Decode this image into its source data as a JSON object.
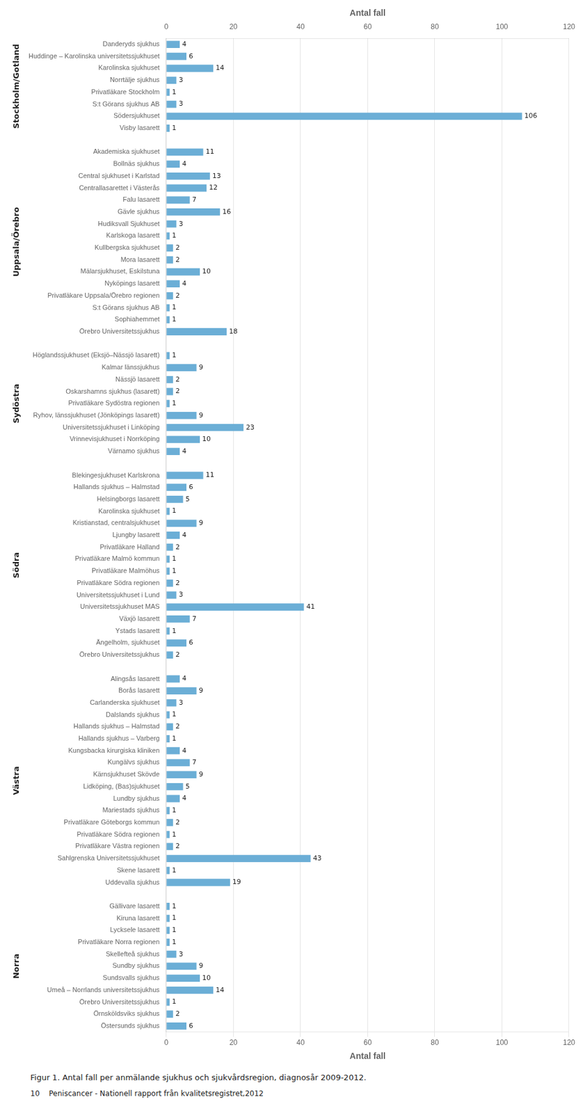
{
  "chart_data": {
    "type": "bar",
    "orientation": "horizontal",
    "title": "Antal fall",
    "xlabel": "Antal fall",
    "color": "#6baed6",
    "xlim": [
      0,
      120
    ],
    "xticks": [
      0,
      20,
      40,
      60,
      80,
      100,
      120
    ],
    "grid": true,
    "data_labels": true,
    "groups": [
      {
        "name": "Stockholm/Gotland",
        "categories": [
          "Danderyds sjukhus",
          "Huddinge – Karolinska universitetssjukhuset",
          "Karolinska sjukhuset",
          "Norrtälje sjukhus",
          "Privatläkare Stockholm",
          "S:t Görans sjukhus AB",
          "Södersjukhuset",
          "Visby lasarett"
        ],
        "values": [
          4,
          6,
          14,
          3,
          1,
          3,
          106,
          1
        ]
      },
      {
        "name": "Uppsala/Örebro",
        "categories": [
          "Akademiska sjukhuset",
          "Bollnäs sjukhus",
          "Central sjukhuset i Karlstad",
          "Centrallasarettet i Västerås",
          "Falu lasarett",
          "Gävle sjukhus",
          "Hudiksvall Sjukhuset",
          "Karlskoga lasarett",
          "Kullbergska sjukhuset",
          "Mora lasarett",
          "Mälarsjukhuset, Eskilstuna",
          "Nyköpings lasarett",
          "Privatläkare Uppsala/Örebro regionen",
          "S:t Görans sjukhus AB",
          "Sophiahemmet",
          "Örebro Universitetssjukhus"
        ],
        "values": [
          11,
          4,
          13,
          12,
          7,
          16,
          3,
          1,
          2,
          2,
          10,
          4,
          2,
          1,
          1,
          18
        ]
      },
      {
        "name": "Sydöstra",
        "categories": [
          "Höglandssjukhuset (Eksjö–Nässjö lasarett)",
          "Kalmar länssjukhus",
          "Nässjö lasarett",
          "Oskarshamns sjukhus (lasarett)",
          "Privatläkare Sydöstra regionen",
          "Ryhov, länssjukhuset (Jönköpings lasarett)",
          "Universitetssjukhuset i Linköping",
          "Vrinnevisjukhuset i Norrköping",
          "Värnamo sjukhus"
        ],
        "values": [
          1,
          9,
          2,
          2,
          1,
          9,
          23,
          10,
          4
        ]
      },
      {
        "name": "Södra",
        "categories": [
          "Blekingesjukhuset Karlskrona",
          "Hallands sjukhus – Halmstad",
          "Helsingborgs lasarett",
          "Karolinska sjukhuset",
          "Kristianstad, centralsjukhuset",
          "Ljungby lasarett",
          "Privatläkare Halland",
          "Privatläkare Malmö kommun",
          "Privatläkare Malmöhus",
          "Privatläkare Södra regionen",
          "Universitetssjukhuset i Lund",
          "Universitetssjukhuset MAS",
          "Växjö lasarett",
          "Ystads lasarett",
          "Ängelholm, sjukhuset",
          "Örebro Universitetssjukhus"
        ],
        "values": [
          11,
          6,
          5,
          1,
          9,
          4,
          2,
          1,
          1,
          2,
          3,
          41,
          7,
          1,
          6,
          2
        ]
      },
      {
        "name": "Västra",
        "categories": [
          "Alingsås lasarett",
          "Borås lasarett",
          "Carlanderska sjukhuset",
          "Dalslands sjukhus",
          "Hallands sjukhus – Halmstad",
          "Hallands sjukhus – Varberg",
          "Kungsbacka kirurgiska kliniken",
          "Kungälvs sjukhus",
          "Kärnsjukhuset Skövde",
          "Lidköping, (Bas)sjukhuset",
          "Lundby sjukhus",
          "Mariestads sjukhus",
          "Privatläkare Göteborgs kommun",
          "Privatläkare Södra regionen",
          "Privatläkare Västra regionen",
          "Sahlgrenska Universitetssjukhuset",
          "Skene lasarett",
          "Uddevalla sjukhus"
        ],
        "values": [
          4,
          9,
          3,
          1,
          2,
          1,
          4,
          7,
          9,
          5,
          4,
          1,
          2,
          1,
          2,
          43,
          1,
          19
        ]
      },
      {
        "name": "Norra",
        "categories": [
          "Gällivare lasarett",
          "Kiruna lasarett",
          "Lycksele lasarett",
          "Privatläkare Norra regionen",
          "Skellefteå sjukhus",
          "Sundby sjukhus",
          "Sundsvalls sjukhus",
          "Umeå – Norrlands universitetssjukhus",
          "Örebro Universitetssjukhus",
          "Örnsköldsviks sjukhus",
          "Östersunds sjukhus"
        ],
        "values": [
          1,
          1,
          1,
          1,
          3,
          9,
          10,
          14,
          1,
          2,
          6
        ]
      }
    ],
    "annotations": [
      "Figur 1. Antal fall per anmälande sjukhus och sjukvårdsregion, diagnosår 2009-2012.",
      "10    Peniscancer - Nationell rapport från kvalitetsregistret,2012"
    ]
  }
}
